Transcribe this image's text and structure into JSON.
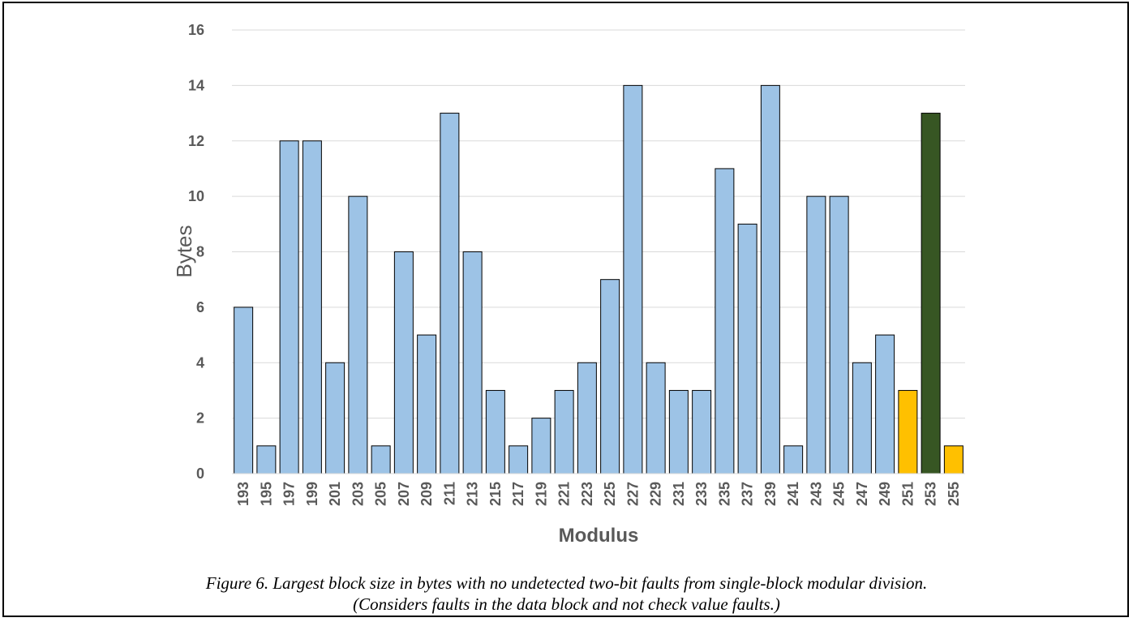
{
  "chart_data": {
    "type": "bar",
    "title": "",
    "xlabel": "Modulus",
    "ylabel": "Bytes",
    "ylim": [
      0,
      16
    ],
    "yticks": [
      "0",
      "2",
      "4",
      "6",
      "8",
      "10",
      "12",
      "14",
      "16"
    ],
    "grid": true,
    "categories": [
      "193",
      "195",
      "197",
      "199",
      "201",
      "203",
      "205",
      "207",
      "209",
      "211",
      "213",
      "215",
      "217",
      "219",
      "221",
      "223",
      "225",
      "227",
      "229",
      "231",
      "233",
      "235",
      "237",
      "239",
      "241",
      "243",
      "245",
      "247",
      "249",
      "251",
      "253",
      "255"
    ],
    "values": [
      6,
      1,
      12,
      12,
      4,
      10,
      1,
      8,
      5,
      13,
      8,
      3,
      1,
      2,
      3,
      4,
      7,
      14,
      4,
      3,
      3,
      11,
      9,
      14,
      1,
      10,
      10,
      4,
      5,
      3,
      13,
      1
    ],
    "bar_colors": [
      "#9DC3E6",
      "#9DC3E6",
      "#9DC3E6",
      "#9DC3E6",
      "#9DC3E6",
      "#9DC3E6",
      "#9DC3E6",
      "#9DC3E6",
      "#9DC3E6",
      "#9DC3E6",
      "#9DC3E6",
      "#9DC3E6",
      "#9DC3E6",
      "#9DC3E6",
      "#9DC3E6",
      "#9DC3E6",
      "#9DC3E6",
      "#9DC3E6",
      "#9DC3E6",
      "#9DC3E6",
      "#9DC3E6",
      "#9DC3E6",
      "#9DC3E6",
      "#9DC3E6",
      "#9DC3E6",
      "#9DC3E6",
      "#9DC3E6",
      "#9DC3E6",
      "#9DC3E6",
      "#FFC000",
      "#375623",
      "#FFC000"
    ]
  },
  "caption": {
    "line1": "Figure 6. Largest block size in bytes with no undetected two-bit faults from single-block modular division.",
    "line2": "(Considers faults in the data block and not check value faults.)"
  }
}
